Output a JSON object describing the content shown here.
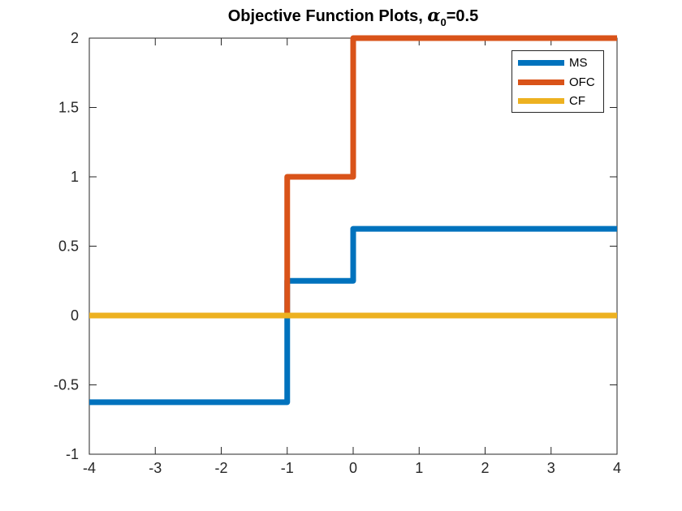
{
  "title": {
    "prefix": "Objective Function Plots, ",
    "alpha": "α",
    "subscript": "0",
    "suffix": "=0.5"
  },
  "colors": {
    "axis": "#262626",
    "background": "#ffffff",
    "ms": "#0072BD",
    "ofc": "#D95319",
    "cf": "#EDB120"
  },
  "legend": {
    "items": [
      {
        "label": "MS",
        "color": "#0072BD"
      },
      {
        "label": "OFC",
        "color": "#D95319"
      },
      {
        "label": "CF",
        "color": "#EDB120"
      }
    ]
  },
  "chart_data": {
    "type": "line",
    "title": "Objective Function Plots, α₀=0.5",
    "xlabel": "",
    "ylabel": "",
    "xlim": [
      -4,
      4
    ],
    "ylim": [
      -1,
      2
    ],
    "x_ticks": [
      -4,
      -3,
      -2,
      -1,
      0,
      1,
      2,
      3,
      4
    ],
    "y_ticks": [
      -1,
      -0.5,
      0,
      0.5,
      1,
      1.5,
      2
    ],
    "grid": false,
    "box": true,
    "legend_position": "top-right",
    "line_width": 7,
    "series": [
      {
        "name": "MS",
        "color": "#0072BD",
        "points": [
          [
            -4,
            -0.625
          ],
          [
            -1,
            -0.625
          ],
          [
            -1,
            0.25
          ],
          [
            0,
            0.25
          ],
          [
            0,
            0.625
          ],
          [
            4,
            0.625
          ]
        ]
      },
      {
        "name": "OFC",
        "color": "#D95319",
        "points": [
          [
            -4,
            0
          ],
          [
            -1,
            0
          ],
          [
            -1,
            1
          ],
          [
            0,
            1
          ],
          [
            0,
            2
          ],
          [
            4,
            2
          ]
        ]
      },
      {
        "name": "CF",
        "color": "#EDB120",
        "points": [
          [
            -4,
            0
          ],
          [
            4,
            0
          ]
        ]
      }
    ]
  }
}
